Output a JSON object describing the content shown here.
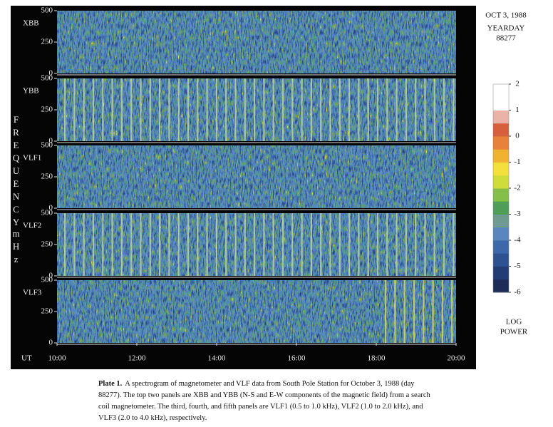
{
  "chart_data": {
    "type": "spectrogram",
    "date": "OCT  3, 1988",
    "date_label": "YEARDAY",
    "yearday": "88277",
    "y_label": "FREQUENCY",
    "y_unit": "mHz",
    "x_label": "UT",
    "xlim": [
      10,
      20
    ],
    "xticks": [
      {
        "value": 10,
        "label": "10:00"
      },
      {
        "value": 12,
        "label": "12:00"
      },
      {
        "value": 14,
        "label": "14:00"
      },
      {
        "value": 16,
        "label": "16:00"
      },
      {
        "value": 18,
        "label": "18:00"
      },
      {
        "value": 20,
        "label": "20:00"
      }
    ],
    "panels": [
      {
        "name": "XBB",
        "ylim": [
          0,
          500
        ],
        "yticks": [
          0,
          250,
          500
        ]
      },
      {
        "name": "YBB",
        "ylim": [
          0,
          500
        ],
        "yticks": [
          0,
          250,
          500
        ]
      },
      {
        "name": "VLF1",
        "ylim": [
          0,
          500
        ],
        "yticks": [
          0,
          250,
          500
        ]
      },
      {
        "name": "VLF2",
        "ylim": [
          0,
          500
        ],
        "yticks": [
          0,
          250,
          500
        ]
      },
      {
        "name": "VLF3",
        "ylim": [
          0,
          500
        ],
        "yticks": [
          0,
          250,
          500
        ]
      }
    ],
    "colorbar": {
      "label": [
        "LOG",
        "POWER"
      ],
      "lim": [
        -6,
        2
      ],
      "ticks": [
        2,
        1,
        0,
        -1,
        -2,
        -3,
        -4,
        -5,
        -6
      ],
      "colors": [
        "#1d2d58",
        "#243c74",
        "#2e5192",
        "#3d68aa",
        "#5a86bd",
        "#6f9a90",
        "#4f9d58",
        "#86bf48",
        "#d0dc3a",
        "#f3e03c",
        "#f1b232",
        "#e8823a",
        "#d6603c",
        "#e9b3a8",
        "#ffffff",
        "#ffffff"
      ]
    }
  },
  "caption": {
    "label": "Plate 1.",
    "lines": [
      "A spectrogram of magnetometer and VLF data from South Pole Station for October 3, 1988 (day",
      "88277). The top two panels are XBB and YBB (N-S and E-W components of the magnetic field) from a search",
      "coil magnetometer.  The third, fourth, and fifth panels are VLF1 (0.5 to 1.0 kHz), VLF2 (1.0 to 2.0 kHz), and",
      "VLF3 (2.0 to 4.0 kHz), respectively."
    ]
  }
}
